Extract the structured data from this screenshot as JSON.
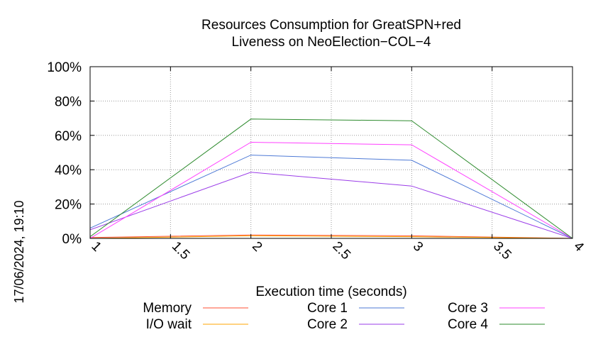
{
  "chart_data": {
    "type": "line",
    "title": "Resources Consumption for GreatSPN+red",
    "subtitle": "Liveness on NeoElection−COL−4",
    "xlabel": "Execution time (seconds)",
    "ylabel": "",
    "side_label": "17/06/2024, 19:10",
    "xlim": [
      1,
      4
    ],
    "ylim": [
      0,
      100
    ],
    "x_ticks": [
      1,
      1.5,
      2,
      2.5,
      3,
      3.5,
      4
    ],
    "x_tick_labels": [
      "1",
      "1.5",
      "2",
      "2.5",
      "3",
      "3.5",
      "4"
    ],
    "y_ticks": [
      0,
      20,
      40,
      60,
      80,
      100
    ],
    "y_tick_labels": [
      "0%",
      "20%",
      "40%",
      "60%",
      "80%",
      "100%"
    ],
    "grid": true,
    "legend_position": "bottom",
    "series": [
      {
        "name": "Memory",
        "color": "#ff4f33",
        "x": [
          1,
          2,
          3,
          4
        ],
        "y": [
          0.5,
          2,
          1.5,
          0
        ]
      },
      {
        "name": "I/O wait",
        "color": "#ffa500",
        "x": [
          1,
          2,
          3,
          4
        ],
        "y": [
          0,
          1.5,
          1,
          0
        ]
      },
      {
        "name": "Core 1",
        "color": "#4e7ad6",
        "x": [
          1,
          2,
          3,
          4
        ],
        "y": [
          6,
          48.5,
          45.5,
          0
        ]
      },
      {
        "name": "Core 2",
        "color": "#9b3de8",
        "x": [
          1,
          2,
          3,
          4
        ],
        "y": [
          5,
          38.5,
          30.5,
          0
        ]
      },
      {
        "name": "Core 3",
        "color": "#ff40ff",
        "x": [
          1,
          2,
          3,
          4
        ],
        "y": [
          0,
          56,
          54.5,
          0
        ]
      },
      {
        "name": "Core 4",
        "color": "#2e8b2e",
        "x": [
          1,
          2,
          3,
          4
        ],
        "y": [
          1,
          69.5,
          68.5,
          0
        ]
      }
    ]
  }
}
